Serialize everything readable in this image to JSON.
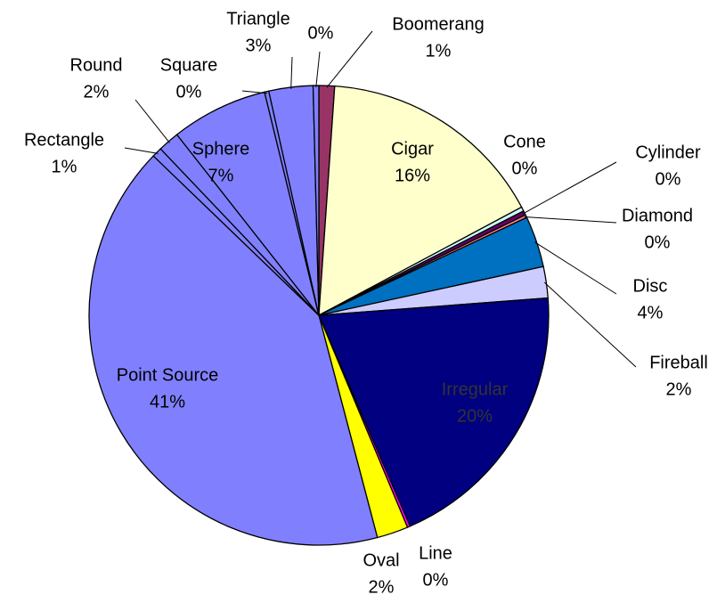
{
  "chart_data": {
    "type": "pie",
    "categories": [
      "Boomerang",
      "Cigar",
      "Cone",
      "Cylinder",
      "Diamond",
      "Disc",
      "Fireball",
      "Irregular",
      "Line",
      "Oval",
      "Point Source",
      "Rectangle",
      "Round",
      "Sphere",
      "Square",
      "Triangle",
      null
    ],
    "values": [
      1.1,
      16.1,
      0.3,
      0.3,
      0.2,
      3.6,
      2.2,
      19.7,
      0.2,
      2.2,
      41.3,
      0.7,
      1.5,
      6.8,
      0.3,
      3.1,
      0.4
    ],
    "value_labels": [
      "1%",
      "16%",
      "0%",
      "0%",
      "0%",
      "4%",
      "2%",
      "20%",
      "0%",
      "2%",
      "41%",
      "1%",
      "2%",
      "7%",
      "0%",
      "3%",
      "0%"
    ],
    "colors": [
      "#993366",
      "#ffffcc",
      "#ccffff",
      "#660066",
      "#ff8080",
      "#0070c0",
      "#ccccff",
      "#000080",
      "#ff00ff",
      "#ffff00",
      "#8080ff",
      "#8080ff",
      "#8080ff",
      "#8080ff",
      "#8080ff",
      "#8080ff",
      "#8080ff"
    ]
  }
}
